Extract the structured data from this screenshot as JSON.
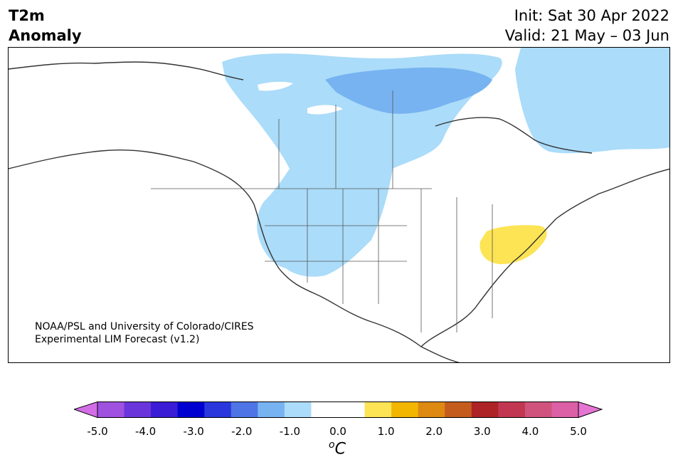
{
  "title": {
    "left_line1": "T2m",
    "left_line2": "Anomaly",
    "right_line1": "Init: Sat 30 Apr 2022",
    "right_line2": "Valid: 21 May – 03 Jun"
  },
  "credit": {
    "line1": "NOAA/PSL and University of Colorado/CIRES",
    "line2": "Experimental LIM Forecast (v1.2)"
  },
  "map": {
    "region": "North America",
    "anomaly_fills": [
      {
        "label": "cool anomaly (-1.0)",
        "color": "#abdcf9"
      },
      {
        "label": "strong cool anomaly (-1.5)",
        "color": "#77b3f1"
      },
      {
        "label": "warm anomaly (+1.0)",
        "color": "#fde455"
      }
    ]
  },
  "colorbar": {
    "unit_base": "C",
    "unit_sup": "o",
    "ticks": [
      "-5.0",
      "-4.0",
      "-3.0",
      "-2.0",
      "-1.0",
      "0.0",
      "1.0",
      "2.0",
      "3.0",
      "4.0",
      "5.0"
    ],
    "colors": [
      "#d36de6",
      "#9f51e0",
      "#6a35db",
      "#3a1dd4",
      "#0000d0",
      "#2a37dc",
      "#4f74e6",
      "#77b3f1",
      "#abdcf9",
      "#ffffff",
      "#ffffff",
      "#fde455",
      "#f2b600",
      "#dd8912",
      "#c45c1d",
      "#ad2326",
      "#c13752",
      "#d0537d",
      "#dc60a6",
      "#e574d3"
    ]
  }
}
